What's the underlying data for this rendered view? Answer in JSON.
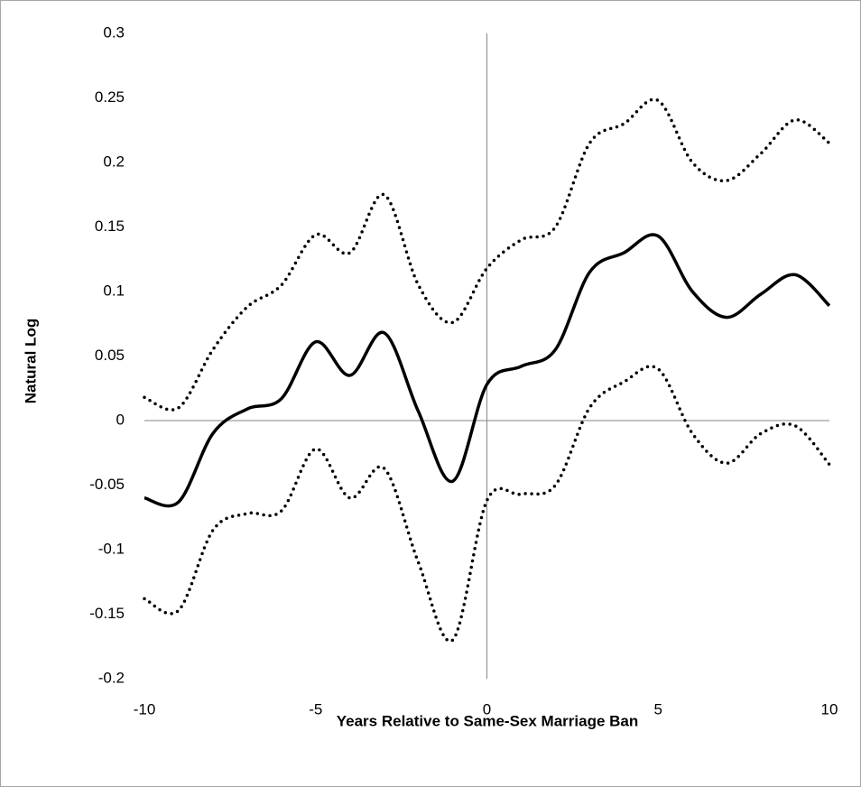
{
  "chart_data": {
    "type": "line",
    "x_label": "Years Relative to Same-Sex Marriage Ban",
    "y_label": "Natural Log",
    "x": [
      -10,
      -9,
      -8,
      -7,
      -6,
      -5,
      -4,
      -3,
      -2,
      -1,
      0,
      1,
      2,
      3,
      4,
      5,
      6,
      7,
      8,
      9,
      10
    ],
    "series": [
      {
        "color": "#000000",
        "style": "solid",
        "values": [
          -0.06,
          -0.063,
          -0.01,
          0.009,
          0.017,
          0.061,
          0.035,
          0.068,
          0.007,
          -0.047,
          0.028,
          0.042,
          0.055,
          0.115,
          0.13,
          0.143,
          0.1,
          0.08,
          0.098,
          0.113,
          0.089
        ]
      },
      {
        "color": "#000000",
        "style": "dotted",
        "values": [
          0.018,
          0.01,
          0.055,
          0.088,
          0.105,
          0.144,
          0.13,
          0.175,
          0.105,
          0.076,
          0.118,
          0.14,
          0.15,
          0.215,
          0.23,
          0.248,
          0.2,
          0.186,
          0.207,
          0.233,
          0.215
        ]
      },
      {
        "color": "#000000",
        "style": "dotted",
        "values": [
          -0.138,
          -0.147,
          -0.085,
          -0.072,
          -0.07,
          -0.022,
          -0.06,
          -0.037,
          -0.11,
          -0.17,
          -0.062,
          -0.057,
          -0.05,
          0.01,
          0.03,
          0.04,
          -0.01,
          -0.033,
          -0.01,
          -0.004,
          -0.034
        ]
      }
    ],
    "xlim": [
      -10,
      10
    ],
    "xticks": [
      -10,
      -5,
      0,
      5,
      10
    ],
    "ylim": [
      -0.2,
      0.3
    ],
    "yticks": [
      0.3,
      0.25,
      0.2,
      0.15,
      0.1,
      0.05,
      0,
      -0.05,
      -0.1,
      -0.15,
      -0.2
    ],
    "zero_lines": true,
    "grid": false
  }
}
